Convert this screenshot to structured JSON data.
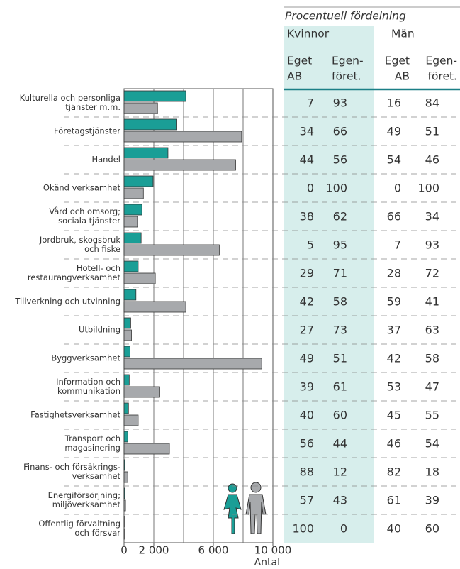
{
  "chart_data": {
    "type": "barh",
    "categories": [
      [
        "Kulturella och personliga",
        "tjänster m.m."
      ],
      [
        "Företagstjänster"
      ],
      [
        "Handel"
      ],
      [
        "Okänd verksamhet"
      ],
      [
        "Vård och omsorg;",
        "sociala tjänster"
      ],
      [
        "Jordbruk, skogsbruk",
        "och fiske"
      ],
      [
        "Hotell- och",
        "restaurangverksamhet"
      ],
      [
        "Tillverkning och utvinning"
      ],
      [
        "Utbildning"
      ],
      [
        "Byggverksamhet"
      ],
      [
        "Information och",
        "kommunikation"
      ],
      [
        "Fastighetsverksamhet"
      ],
      [
        "Transport och",
        "magasinering"
      ],
      [
        "Finans- och försäkrings-",
        "verksamhet"
      ],
      [
        "Energiförsörjning;",
        "miljöverksamhet"
      ],
      [
        "Offentlig förvaltning",
        "och försvar"
      ]
    ],
    "series": [
      {
        "name": "Kvinnor",
        "color": "#1a9e96",
        "values": [
          4150,
          3550,
          2950,
          1950,
          1200,
          1150,
          950,
          800,
          450,
          400,
          350,
          300,
          250,
          50,
          50,
          20
        ]
      },
      {
        "name": "Män",
        "color": "#a7a9ac",
        "values": [
          2250,
          7900,
          7500,
          1300,
          900,
          6400,
          2100,
          4150,
          500,
          9250,
          2400,
          950,
          3050,
          250,
          100,
          20
        ]
      }
    ],
    "xlim": [
      0,
      10000
    ],
    "xticks": [
      0,
      {
        "value": 2000,
        "label": "2 000"
      },
      {
        "value": 6000,
        "label": "6 000"
      },
      {
        "value": 10000,
        "label": "10 000"
      }
    ],
    "xgrid": [
      2000,
      4000,
      6000,
      8000
    ],
    "xlabel": "Antal"
  },
  "table": {
    "title": "Procentuell fördelning",
    "groups": [
      "Kvinnor",
      "Män"
    ],
    "columns": [
      [
        "Eget",
        "AB"
      ],
      [
        "Egen-",
        "föret."
      ],
      [
        "Eget",
        "AB"
      ],
      [
        "Egen-",
        "föret."
      ]
    ],
    "rows": [
      [
        7,
        93,
        16,
        84
      ],
      [
        34,
        66,
        49,
        51
      ],
      [
        44,
        56,
        54,
        46
      ],
      [
        0,
        100,
        0,
        100
      ],
      [
        38,
        62,
        66,
        34
      ],
      [
        5,
        95,
        7,
        93
      ],
      [
        29,
        71,
        28,
        72
      ],
      [
        42,
        58,
        59,
        41
      ],
      [
        27,
        73,
        37,
        63
      ],
      [
        49,
        51,
        42,
        58
      ],
      [
        39,
        61,
        53,
        47
      ],
      [
        40,
        60,
        45,
        55
      ],
      [
        56,
        44,
        46,
        54
      ],
      [
        88,
        12,
        82,
        18
      ],
      [
        57,
        43,
        61,
        39
      ],
      [
        100,
        0,
        40,
        60
      ]
    ]
  }
}
